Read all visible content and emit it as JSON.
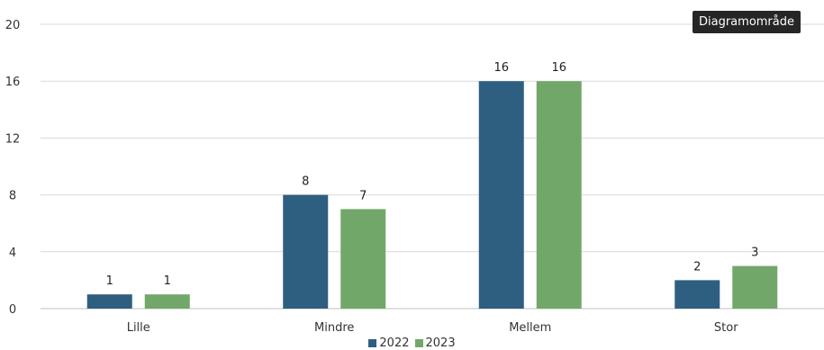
{
  "chart_data": {
    "type": "bar",
    "categories": [
      "Lille",
      "Mindre",
      "Mellem",
      "Stor"
    ],
    "series": [
      {
        "name": "2022",
        "values": [
          1,
          8,
          16,
          2
        ],
        "color": "#2e5f80"
      },
      {
        "name": "2023",
        "values": [
          1,
          7,
          16,
          3
        ],
        "color": "#72a76a"
      }
    ],
    "yticks": [
      "0",
      "4",
      "8",
      "12",
      "16",
      "20"
    ],
    "ylim": [
      0,
      20
    ],
    "grid": true,
    "legend_position": "bottom",
    "title": "",
    "xlabel": "",
    "ylabel": ""
  },
  "tooltip": {
    "text": "Diagramområde"
  }
}
